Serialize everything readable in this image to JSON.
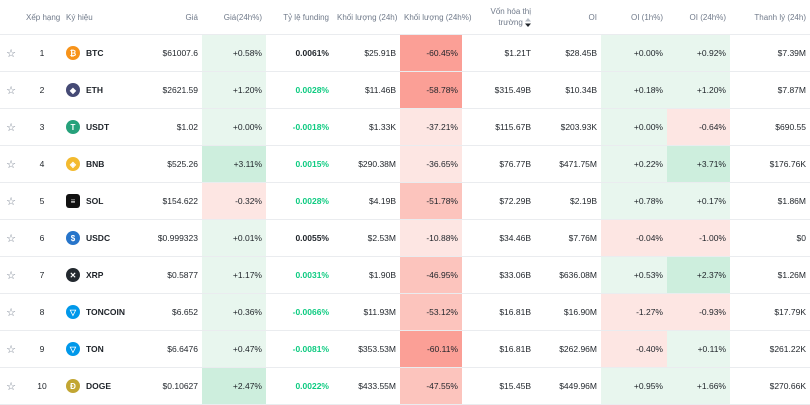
{
  "headers": {
    "rank": "Xếp hạng",
    "symbol": "Ký hiệu",
    "price": "Giá",
    "change": "Giá(24h%)",
    "funding": "Tỷ lệ funding",
    "volume": "Khối lượng (24h)",
    "volume_change": "Khối lượng (24h%)",
    "mcap": "Vốn hóa thị trường",
    "oi": "OI",
    "oi_1h": "OI (1h%)",
    "oi_24h": "OI (24h%)",
    "liq": "Thanh lý (24h)"
  },
  "colors": {
    "green_bg_strong": "#cdeedd",
    "green_bg_light": "#e8f6ee",
    "red_bg_strong": "#fb9f96",
    "red_bg_mid": "#fcc4bd",
    "red_bg_light": "#fde6e3",
    "positive_text": "#0ecb81",
    "negative_text": "#f6465d"
  },
  "rows": [
    {
      "rank": "1",
      "symbol": "BTC",
      "icon": "bitcoin-icon",
      "icon_glyph": "₿",
      "icon_color": "#f7931a",
      "price": "$61007.6",
      "change": "+0.58%",
      "change_bg": "#e8f6ee",
      "funding": "0.0061%",
      "funding_tone": "neu",
      "volume": "$25.91B",
      "vol_change": "-60.45%",
      "vol_bg": "#fb9f96",
      "mcap": "$1.21T",
      "oi": "$28.45B",
      "oi1h": "+0.00%",
      "oi1h_bg": "#e8f6ee",
      "oi24h": "+0.92%",
      "oi24h_bg": "#e8f6ee",
      "liq": "$7.39M"
    },
    {
      "rank": "2",
      "symbol": "ETH",
      "icon": "ethereum-icon",
      "icon_glyph": "◆",
      "icon_color": "#454a75",
      "price": "$2621.59",
      "change": "+1.20%",
      "change_bg": "#e8f6ee",
      "funding": "0.0028%",
      "funding_tone": "pos",
      "volume": "$11.46B",
      "vol_change": "-58.78%",
      "vol_bg": "#fb9f96",
      "mcap": "$315.49B",
      "oi": "$10.34B",
      "oi1h": "+0.18%",
      "oi1h_bg": "#e8f6ee",
      "oi24h": "+1.20%",
      "oi24h_bg": "#e8f6ee",
      "liq": "$7.87M"
    },
    {
      "rank": "3",
      "symbol": "USDT",
      "icon": "tether-icon",
      "icon_glyph": "T",
      "icon_color": "#26a17b",
      "price": "$1.02",
      "change": "+0.00%",
      "change_bg": "#e8f6ee",
      "funding": "-0.0018%",
      "funding_tone": "pos",
      "volume": "$1.33K",
      "vol_change": "-37.21%",
      "vol_bg": "#fde6e3",
      "mcap": "$115.67B",
      "oi": "$203.93K",
      "oi1h": "+0.00%",
      "oi1h_bg": "#e8f6ee",
      "oi24h": "-0.64%",
      "oi24h_bg": "#fde6e3",
      "liq": "$690.55"
    },
    {
      "rank": "4",
      "symbol": "BNB",
      "icon": "bnb-icon",
      "icon_glyph": "◈",
      "icon_color": "#f3ba2f",
      "price": "$525.26",
      "change": "+3.11%",
      "change_bg": "#cdeedd",
      "funding": "0.0015%",
      "funding_tone": "pos",
      "volume": "$290.38M",
      "vol_change": "-36.65%",
      "vol_bg": "#fde6e3",
      "mcap": "$76.77B",
      "oi": "$471.75M",
      "oi1h": "+0.22%",
      "oi1h_bg": "#e8f6ee",
      "oi24h": "+3.71%",
      "oi24h_bg": "#cdeedd",
      "liq": "$176.76K"
    },
    {
      "rank": "5",
      "symbol": "SOL",
      "icon": "solana-icon",
      "icon_glyph": "≡",
      "icon_color": "#111111",
      "price": "$154.622",
      "change": "-0.32%",
      "change_bg": "#fde6e3",
      "funding": "0.0028%",
      "funding_tone": "pos",
      "volume": "$4.19B",
      "vol_change": "-51.78%",
      "vol_bg": "#fcc4bd",
      "mcap": "$72.29B",
      "oi": "$2.19B",
      "oi1h": "+0.78%",
      "oi1h_bg": "#e8f6ee",
      "oi24h": "+0.17%",
      "oi24h_bg": "#e8f6ee",
      "liq": "$1.86M"
    },
    {
      "rank": "6",
      "symbol": "USDC",
      "icon": "usdc-icon",
      "icon_glyph": "$",
      "icon_color": "#2775ca",
      "price": "$0.999323",
      "change": "+0.01%",
      "change_bg": "#e8f6ee",
      "funding": "0.0055%",
      "funding_tone": "neu",
      "volume": "$2.53M",
      "vol_change": "-10.88%",
      "vol_bg": "#fde6e3",
      "mcap": "$34.46B",
      "oi": "$7.76M",
      "oi1h": "-0.04%",
      "oi1h_bg": "#fde6e3",
      "oi24h": "-1.00%",
      "oi24h_bg": "#fde6e3",
      "liq": "$0"
    },
    {
      "rank": "7",
      "symbol": "XRP",
      "icon": "xrp-icon",
      "icon_glyph": "✕",
      "icon_color": "#23292f",
      "price": "$0.5877",
      "change": "+1.17%",
      "change_bg": "#e8f6ee",
      "funding": "0.0031%",
      "funding_tone": "pos",
      "volume": "$1.90B",
      "vol_change": "-46.95%",
      "vol_bg": "#fcc4bd",
      "mcap": "$33.06B",
      "oi": "$636.08M",
      "oi1h": "+0.53%",
      "oi1h_bg": "#e8f6ee",
      "oi24h": "+2.37%",
      "oi24h_bg": "#cdeedd",
      "liq": "$1.26M"
    },
    {
      "rank": "8",
      "symbol": "TONCOIN",
      "icon": "toncoin-icon",
      "icon_glyph": "▽",
      "icon_color": "#0098ea",
      "price": "$6.652",
      "change": "+0.36%",
      "change_bg": "#e8f6ee",
      "funding": "-0.0066%",
      "funding_tone": "pos",
      "volume": "$11.93M",
      "vol_change": "-53.12%",
      "vol_bg": "#fcc4bd",
      "mcap": "$16.81B",
      "oi": "$16.90M",
      "oi1h": "-1.27%",
      "oi1h_bg": "#fde6e3",
      "oi24h": "-0.93%",
      "oi24h_bg": "#fde6e3",
      "liq": "$17.79K"
    },
    {
      "rank": "9",
      "symbol": "TON",
      "icon": "ton-icon",
      "icon_glyph": "▽",
      "icon_color": "#0098ea",
      "price": "$6.6476",
      "change": "+0.47%",
      "change_bg": "#e8f6ee",
      "funding": "-0.0081%",
      "funding_tone": "pos",
      "volume": "$353.53M",
      "vol_change": "-60.11%",
      "vol_bg": "#fb9f96",
      "mcap": "$16.81B",
      "oi": "$262.96M",
      "oi1h": "-0.40%",
      "oi1h_bg": "#fde6e3",
      "oi24h": "+0.11%",
      "oi24h_bg": "#e8f6ee",
      "liq": "$261.22K"
    },
    {
      "rank": "10",
      "symbol": "DOGE",
      "icon": "doge-icon",
      "icon_glyph": "Ð",
      "icon_color": "#c2a633",
      "price": "$0.10627",
      "change": "+2.47%",
      "change_bg": "#cdeedd",
      "funding": "0.0022%",
      "funding_tone": "pos",
      "volume": "$433.55M",
      "vol_change": "-47.55%",
      "vol_bg": "#fcc4bd",
      "mcap": "$15.45B",
      "oi": "$449.96M",
      "oi1h": "+0.95%",
      "oi1h_bg": "#e8f6ee",
      "oi24h": "+1.66%",
      "oi24h_bg": "#e8f6ee",
      "liq": "$270.66K"
    }
  ]
}
